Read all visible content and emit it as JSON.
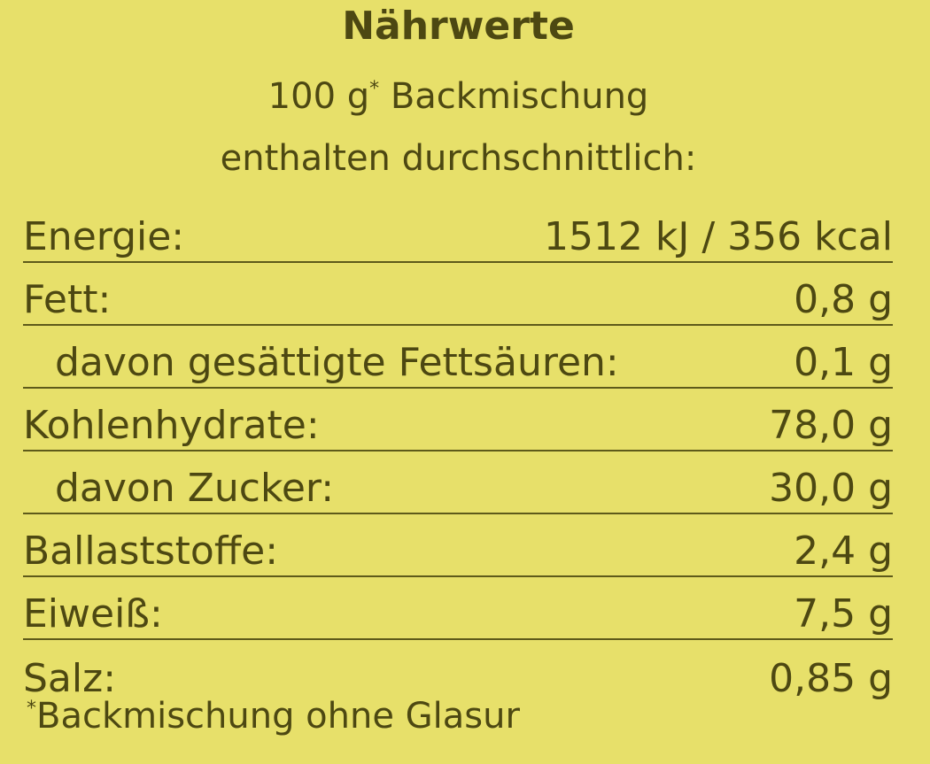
{
  "title": "Nährwerte",
  "subtitle": {
    "amount": "100 g",
    "marker": "*",
    "rest": " Backmischung",
    "line2": "enthalten durchschnittlich:"
  },
  "colors": {
    "background": "#e7e06a",
    "text": "#4d4812"
  },
  "rows": [
    {
      "label": "Energie:",
      "value": "1512 kJ / 356 kcal",
      "indent": false
    },
    {
      "label": "Fett:",
      "value": "0,8 g",
      "indent": false
    },
    {
      "label": "davon gesättigte Fettsäuren:",
      "value": "0,1 g",
      "indent": true
    },
    {
      "label": "Kohlenhydrate:",
      "value": "78,0 g",
      "indent": false
    },
    {
      "label": "davon Zucker:",
      "value": "30,0 g",
      "indent": true
    },
    {
      "label": "Ballaststoffe:",
      "value": "2,4 g",
      "indent": false
    },
    {
      "label": "Eiweiß:",
      "value": "7,5 g",
      "indent": false
    },
    {
      "label": "Salz:",
      "value": "0,85 g",
      "indent": false
    }
  ],
  "footnote": {
    "marker": "*",
    "text": "Backmischung ohne Glasur"
  }
}
